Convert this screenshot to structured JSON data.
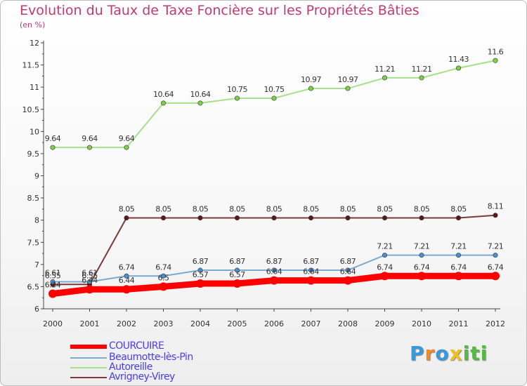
{
  "header": {
    "title": "Evolution du Taux de Taxe Foncière sur les Propriétés Bâties",
    "unit": "(en %)"
  },
  "chart_data": {
    "type": "line",
    "title": "Evolution du Taux de Taxe Foncière sur les Propriétés Bâties",
    "ylabel": "(en %)",
    "xlabel": "",
    "ylim": [
      6,
      12
    ],
    "y_ticks": [
      "6",
      "6.5",
      "7",
      "7.5",
      "8",
      "8.5",
      "9",
      "9.5",
      "10",
      "10.5",
      "11",
      "11.5",
      "12"
    ],
    "categories": [
      "2000",
      "2001",
      "2002",
      "2003",
      "2004",
      "2005",
      "2006",
      "2007",
      "2008",
      "2009",
      "2010",
      "2011",
      "2012"
    ],
    "grid": false,
    "legend_position": "bottom-left",
    "series": [
      {
        "name": "Autoreille",
        "color": "#a5e08a",
        "marker": "#7ed04a",
        "values": [
          9.64,
          9.64,
          9.64,
          10.64,
          10.64,
          10.75,
          10.75,
          10.97,
          10.97,
          11.21,
          11.21,
          11.43,
          11.6
        ],
        "labels": [
          "9.64",
          "9.64",
          "9.64",
          "10.64",
          "10.64",
          "10.75",
          "10.75",
          "10.97",
          "10.97",
          "11.21",
          "11.21",
          "11.43",
          "11.6"
        ]
      },
      {
        "name": "Avrigney-Virey",
        "color": "#7a3a3a",
        "marker": "#5a1a1a",
        "values": [
          6.55,
          6.55,
          8.05,
          8.05,
          8.05,
          8.05,
          8.05,
          8.05,
          8.05,
          8.05,
          8.05,
          8.05,
          8.11
        ],
        "labels": [
          "6.55",
          "6.55",
          "8.05",
          "8.05",
          "8.05",
          "8.05",
          "8.05",
          "8.05",
          "8.05",
          "8.05",
          "8.05",
          "8.05",
          "8.11"
        ]
      },
      {
        "name": "Beaumotte-lès-Pin",
        "color": "#7aaad0",
        "marker": "#4a90d0",
        "values": [
          6.61,
          6.61,
          6.74,
          6.74,
          6.87,
          6.87,
          6.87,
          6.87,
          6.87,
          7.21,
          7.21,
          7.21,
          7.21
        ],
        "labels": [
          "6.61",
          "6.61",
          "6.74",
          "6.74",
          "6.87",
          "6.87",
          "6.87",
          "6.87",
          "6.87",
          "7.21",
          "7.21",
          "7.21",
          "7.21"
        ]
      },
      {
        "name": "COURCUIRE",
        "color": "#ff0000",
        "marker": "#ff0000",
        "values": [
          6.34,
          6.44,
          6.44,
          6.5,
          6.57,
          6.57,
          6.64,
          6.64,
          6.64,
          6.74,
          6.74,
          6.74,
          6.74
        ],
        "labels": [
          "6.34",
          "6.44",
          "6.44",
          "6.5",
          "6.57",
          "6.57",
          "6.64",
          "6.64",
          "6.64",
          "6.74",
          "6.74",
          "6.74",
          "6.74"
        ]
      }
    ]
  },
  "legend": {
    "items": [
      {
        "label": "COURCUIRE",
        "color": "#ff0000"
      },
      {
        "label": "Beaumotte-lès-Pin",
        "color": "#7aaad0"
      },
      {
        "label": "Autoreille",
        "color": "#a5e08a"
      },
      {
        "label": "Avrigney-Virey",
        "color": "#7a3a3a"
      }
    ]
  },
  "branding": {
    "logo_letters": [
      "P",
      "r",
      "o",
      "x",
      "i",
      "t",
      "i"
    ],
    "logo_colors": [
      "#3a9ad9",
      "#f08a24",
      "#3a9ad9",
      "#f0c020",
      "#59b947",
      "#59b947",
      "#59b947"
    ]
  }
}
